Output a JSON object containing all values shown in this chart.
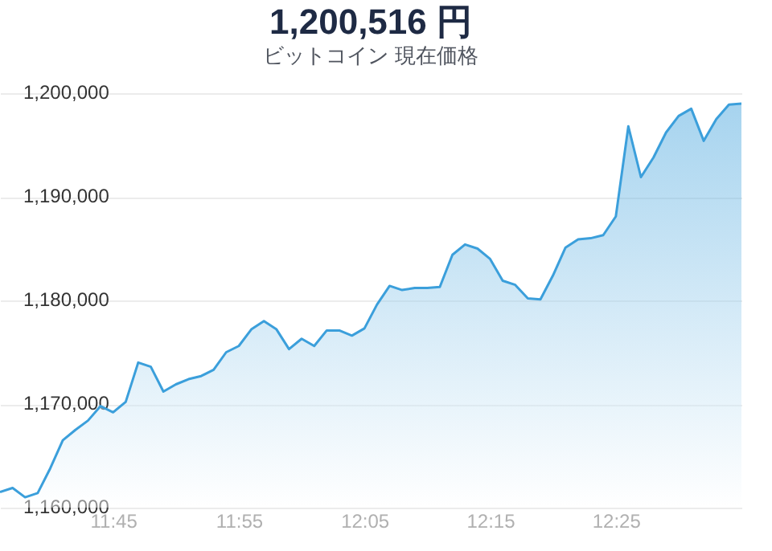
{
  "chart_data": {
    "type": "area",
    "title": "1,200,516 円",
    "subtitle": "ビットコイン 現在価格",
    "x": [
      11.6,
      11.6167,
      11.6333,
      11.65,
      11.6667,
      11.6833,
      11.7,
      11.7167,
      11.7333,
      11.75,
      11.7667,
      11.7833,
      11.8,
      11.8167,
      11.8333,
      11.85,
      11.8667,
      11.8833,
      11.9,
      11.9167,
      11.9333,
      11.95,
      11.9667,
      11.9833,
      12.0,
      12.0167,
      12.0333,
      12.05,
      12.0667,
      12.0833,
      12.1,
      12.1167,
      12.1333,
      12.15,
      12.1667,
      12.1833,
      12.2,
      12.2167,
      12.2333,
      12.25,
      12.2667,
      12.2833,
      12.3,
      12.3167,
      12.3333,
      12.35,
      12.3667,
      12.3833,
      12.4,
      12.4167,
      12.4333,
      12.45,
      12.4667,
      12.4833,
      12.5,
      12.5167,
      12.5333,
      12.55,
      12.5667,
      12.5833
    ],
    "values": [
      1161500,
      1161900,
      1161000,
      1161400,
      1163800,
      1166500,
      1167500,
      1168400,
      1169800,
      1169200,
      1170200,
      1174000,
      1173600,
      1171200,
      1171900,
      1172400,
      1172700,
      1173300,
      1175000,
      1175600,
      1177200,
      1178000,
      1177200,
      1175300,
      1176300,
      1175600,
      1177100,
      1177100,
      1176600,
      1177300,
      1179600,
      1181400,
      1181000,
      1181200,
      1181200,
      1181300,
      1184400,
      1185400,
      1185000,
      1184000,
      1181900,
      1181500,
      1180200,
      1180100,
      1182400,
      1185100,
      1185900,
      1186000,
      1186300,
      1188100,
      1196800,
      1191900,
      1193800,
      1196200,
      1197800,
      1198500,
      1195400,
      1197500,
      1198900,
      1199000
    ],
    "color": "#3b9fdb",
    "xlim": [
      11.6,
      12.5833
    ],
    "xticks": [
      {
        "value": 11.75,
        "label": "11:45"
      },
      {
        "value": 11.9167,
        "label": "11:55"
      },
      {
        "value": 12.0833,
        "label": "12:05"
      },
      {
        "value": 12.25,
        "label": "12:15"
      },
      {
        "value": 12.4167,
        "label": "12:25"
      }
    ],
    "ylim": [
      1160000,
      1200000
    ],
    "yticks": [
      {
        "value": 1160000,
        "label": "1,160,000"
      },
      {
        "value": 1170000,
        "label": "1,170,000"
      },
      {
        "value": 1180000,
        "label": "1,180,000"
      },
      {
        "value": 1190000,
        "label": "1,190,000"
      },
      {
        "value": 1200000,
        "label": "1,200,000"
      }
    ],
    "grid": "y"
  }
}
